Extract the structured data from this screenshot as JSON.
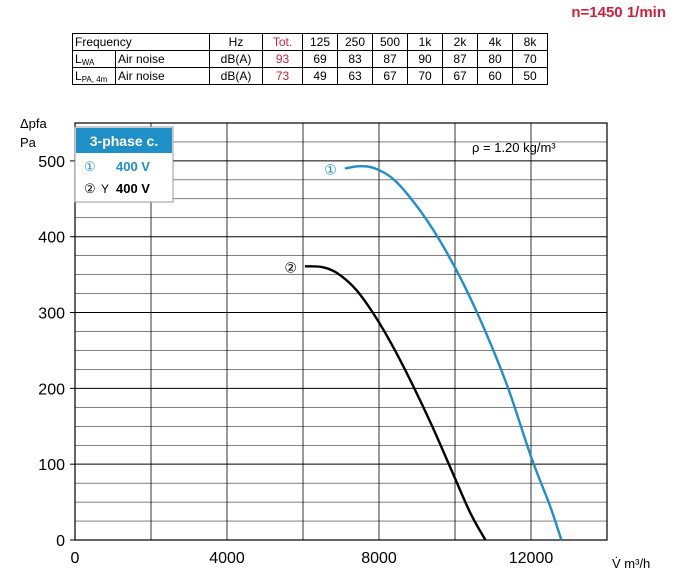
{
  "speed_label": "n=1450 1/min",
  "noise_table": {
    "header": [
      "Frequency",
      "Hz",
      "Tot.",
      "125",
      "250",
      "500",
      "1k",
      "2k",
      "4k",
      "8k"
    ],
    "rows": [
      {
        "sym": "L",
        "sub": "WA",
        "desc": "Air noise",
        "unit": "dB(A)",
        "tot": "93",
        "values": [
          "69",
          "83",
          "87",
          "90",
          "87",
          "80",
          "70"
        ]
      },
      {
        "sym": "L",
        "sub": "PA, 4m",
        "desc": "Air noise",
        "unit": "dB(A)",
        "tot": "73",
        "values": [
          "49",
          "63",
          "67",
          "70",
          "67",
          "60",
          "50"
        ]
      }
    ]
  },
  "legend": {
    "title": "3-phase c.",
    "items": [
      {
        "marker": "①",
        "symbol": "",
        "label": "400 V",
        "color": "#1f8fc8"
      },
      {
        "marker": "②",
        "symbol": "Y",
        "label": "400 V",
        "color": "#000000"
      }
    ]
  },
  "density_label": "ρ = 1.20 kg/m³",
  "chart_data": {
    "type": "line",
    "ylabel": "Δpfa",
    "yunit": "Pa",
    "xunit": "V̇ m³/h",
    "xlim": [
      0,
      14000
    ],
    "ylim": [
      0,
      550
    ],
    "xticks": [
      0,
      4000,
      8000,
      12000
    ],
    "yticks": [
      0,
      100,
      200,
      300,
      400,
      500
    ],
    "grid": true,
    "series": [
      {
        "name": "①",
        "color": "#1f8fc8",
        "x": [
          7100,
          7500,
          7900,
          8400,
          9000,
          9600,
          10200,
          10800,
          11400,
          12000,
          12500,
          12800
        ],
        "y": [
          490,
          493,
          490,
          475,
          440,
          395,
          340,
          275,
          200,
          110,
          45,
          0
        ]
      },
      {
        "name": "②",
        "color": "#000000",
        "x": [
          6050,
          6500,
          6900,
          7400,
          7900,
          8400,
          8900,
          9400,
          9900,
          10400,
          10800
        ],
        "y": [
          361,
          360,
          352,
          330,
          295,
          252,
          203,
          150,
          93,
          36,
          0
        ]
      }
    ]
  }
}
